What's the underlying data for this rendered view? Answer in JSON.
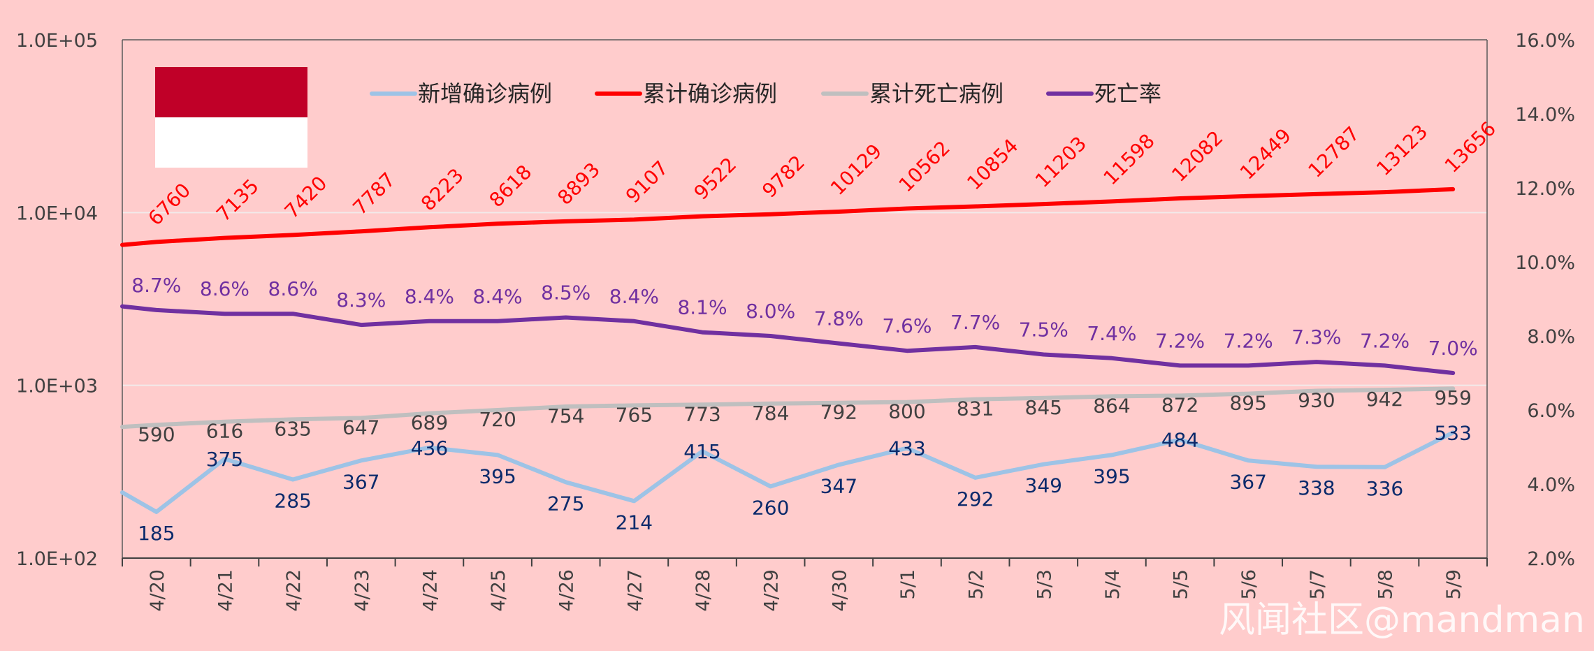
{
  "chart_data": {
    "type": "line",
    "categories": [
      "4/20",
      "4/21",
      "4/22",
      "4/23",
      "4/24",
      "4/25",
      "4/26",
      "4/27",
      "4/28",
      "4/29",
      "4/30",
      "5/1",
      "5/2",
      "5/3",
      "5/4",
      "5/5",
      "5/6",
      "5/7",
      "5/8",
      "5/9"
    ],
    "y_left": {
      "scale": "log",
      "range": [
        100,
        100000
      ],
      "ticks": [
        "1.0E+02",
        "1.0E+03",
        "1.0E+04",
        "1.0E+05"
      ]
    },
    "y_right": {
      "scale": "linear",
      "range": [
        2.0,
        16.0
      ],
      "ticks": [
        "2.0%",
        "4.0%",
        "6.0%",
        "8.0%",
        "10.0%",
        "12.0%",
        "14.0%",
        "16.0%"
      ]
    },
    "grid": "horizontal",
    "legend_position": "top",
    "series": [
      {
        "name": "新增确诊病例",
        "axis": "left",
        "color": "#9dc3e6",
        "first_value": 240,
        "values": [
          185,
          375,
          285,
          367,
          436,
          395,
          275,
          214,
          415,
          260,
          347,
          433,
          292,
          349,
          395,
          484,
          367,
          338,
          336,
          533
        ],
        "labels": [
          "185",
          "375",
          "285",
          "367",
          "436",
          "395",
          "275",
          "214",
          "415",
          "260",
          "347",
          "433",
          "292",
          "349",
          "395",
          "484",
          "367",
          "338",
          "336",
          "533"
        ]
      },
      {
        "name": "累计确诊病例",
        "axis": "left",
        "color": "#ff0000",
        "first_value": 6500,
        "values": [
          6760,
          7135,
          7420,
          7787,
          8223,
          8618,
          8893,
          9107,
          9522,
          9782,
          10129,
          10562,
          10854,
          11203,
          11598,
          12082,
          12449,
          12787,
          13123,
          13656
        ],
        "labels": [
          "6760",
          "7135",
          "7420",
          "7787",
          "8223",
          "8618",
          "8893",
          "9107",
          "9522",
          "9782",
          "10129",
          "10562",
          "10854",
          "11203",
          "11598",
          "12082",
          "12449",
          "12787",
          "13123",
          "13656"
        ]
      },
      {
        "name": "累计死亡病例",
        "axis": "left",
        "color": "#bfbfbf",
        "first_value": 575,
        "values": [
          590,
          616,
          635,
          647,
          689,
          720,
          754,
          765,
          773,
          784,
          792,
          800,
          831,
          845,
          864,
          872,
          895,
          930,
          942,
          959
        ],
        "labels": [
          "590",
          "616",
          "635",
          "647",
          "689",
          "720",
          "754",
          "765",
          "773",
          "784",
          "792",
          "800",
          "831",
          "845",
          "864",
          "872",
          "895",
          "930",
          "942",
          "959"
        ]
      },
      {
        "name": "死亡率",
        "axis": "right",
        "color": "#7030a0",
        "first_value": 8.8,
        "values": [
          8.7,
          8.6,
          8.6,
          8.3,
          8.4,
          8.4,
          8.5,
          8.4,
          8.1,
          8.0,
          7.8,
          7.6,
          7.7,
          7.5,
          7.4,
          7.2,
          7.2,
          7.3,
          7.2,
          7.0
        ],
        "labels": [
          "8.7%",
          "8.6%",
          "8.6%",
          "8.3%",
          "8.4%",
          "8.4%",
          "8.5%",
          "8.4%",
          "8.1%",
          "8.0%",
          "7.8%",
          "7.6%",
          "7.7%",
          "7.5%",
          "7.4%",
          "7.2%",
          "7.2%",
          "7.3%",
          "7.2%",
          "7.0%"
        ]
      }
    ]
  },
  "flag_colors": {
    "top": "#c00028",
    "bottom": "#ffffff"
  },
  "watermark": "风闻社区@mandman"
}
